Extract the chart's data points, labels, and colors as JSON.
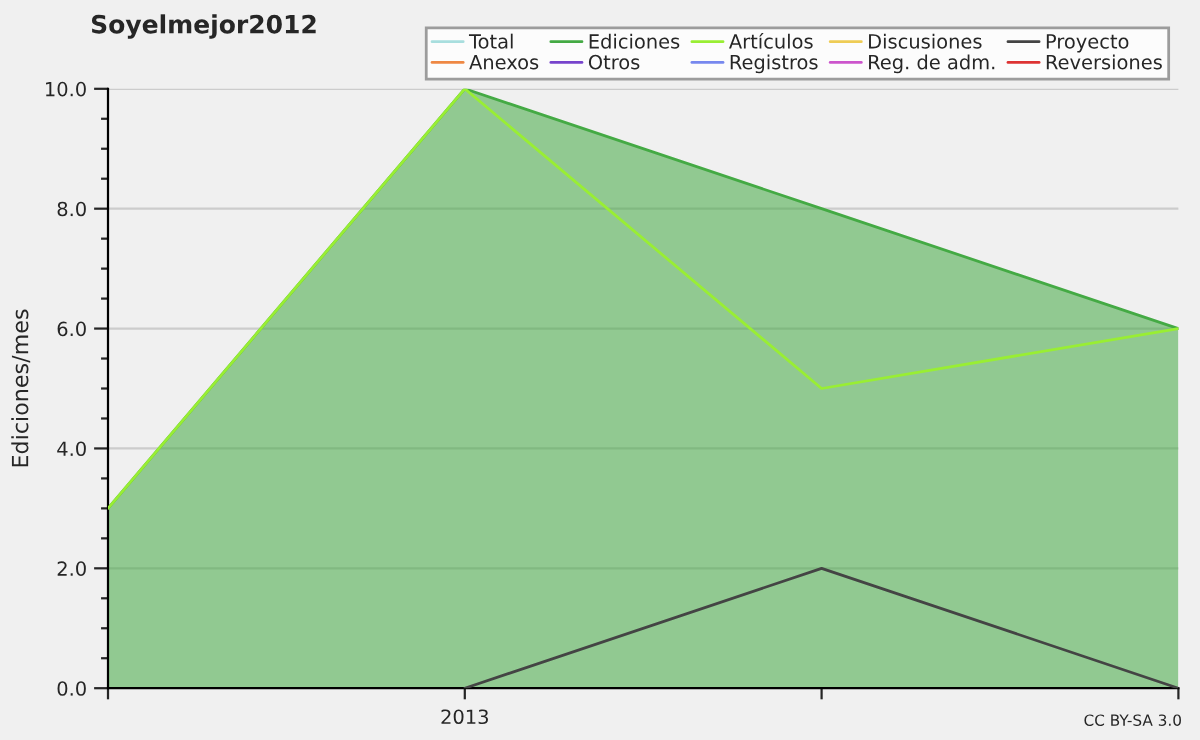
{
  "chart_data": {
    "type": "area",
    "title": "Soyelmejor2012",
    "ylabel": "Ediciones/mes",
    "categories": [
      null,
      "2013",
      null,
      null
    ],
    "series": [
      {
        "name": "Total",
        "color": "#a8dede",
        "type": "line",
        "values": [
          null,
          null,
          null,
          null
        ]
      },
      {
        "name": "Ediciones",
        "color": "#44aa44",
        "values": [
          3,
          10,
          8,
          6
        ]
      },
      {
        "name": "Artículos",
        "color": "#99ee33",
        "type": "line",
        "values": [
          3,
          10,
          5,
          6
        ]
      },
      {
        "name": "Discusiones",
        "color": "#eecc55",
        "type": "line",
        "values": [
          null,
          null,
          null,
          null
        ]
      },
      {
        "name": "Proyecto",
        "color": "#444444",
        "type": "line",
        "values": [
          null,
          0,
          2,
          0
        ]
      },
      {
        "name": "Anexos",
        "color": "#ee8844",
        "type": "line",
        "values": [
          null,
          null,
          null,
          null
        ]
      },
      {
        "name": "Otros",
        "color": "#7744cc",
        "type": "line",
        "values": [
          null,
          null,
          null,
          null
        ]
      },
      {
        "name": "Registros",
        "color": "#7788ee",
        "type": "line",
        "values": [
          null,
          null,
          null,
          null
        ]
      },
      {
        "name": "Reg. de adm.",
        "color": "#cc55cc",
        "type": "line",
        "values": [
          null,
          null,
          null,
          null
        ]
      },
      {
        "name": "Reversiones",
        "color": "#dd3333",
        "type": "line",
        "values": [
          null,
          null,
          null,
          null
        ]
      }
    ],
    "ylim": [
      0,
      10
    ],
    "yticks": [
      {
        "value": 0,
        "label": "0.0"
      },
      {
        "value": 0.5,
        "label": null
      },
      {
        "value": 1,
        "label": null
      },
      {
        "value": 1.5,
        "label": null
      },
      {
        "value": 2,
        "label": "2.0"
      },
      {
        "value": 2.5,
        "label": null
      },
      {
        "value": 3,
        "label": null
      },
      {
        "value": 3.5,
        "label": null
      },
      {
        "value": 4,
        "label": "4.0"
      },
      {
        "value": 4.5,
        "label": null
      },
      {
        "value": 5,
        "label": null
      },
      {
        "value": 5.5,
        "label": null
      },
      {
        "value": 6,
        "label": "6.0"
      },
      {
        "value": 6.5,
        "label": null
      },
      {
        "value": 7,
        "label": null
      },
      {
        "value": 7.5,
        "label": null
      },
      {
        "value": 8,
        "label": "8.0"
      },
      {
        "value": 8.5,
        "label": null
      },
      {
        "value": 9,
        "label": null
      },
      {
        "value": 9.5,
        "label": null
      },
      {
        "value": 10,
        "label": "10.0"
      }
    ],
    "grid": "y",
    "legend": "top right",
    "annotations": [
      "CC BY-SA 3.0"
    ]
  }
}
